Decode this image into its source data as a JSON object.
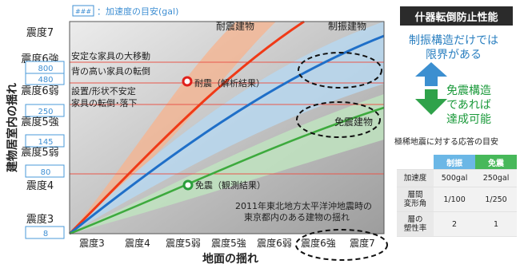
{
  "legend_label": "###：加速度の目安(gal)",
  "chart_data": {
    "type": "line",
    "ylabel": "建物居室内の揺れ",
    "xlabel": "地面の揺れ",
    "x_ticks": [
      "震度3",
      "震度4",
      "震度5弱",
      "震度5強",
      "震度6弱",
      "震度6強",
      "震度7"
    ],
    "y_ticks": [
      "震度3",
      "震度4",
      "震度5弱",
      "震度5強",
      "震度6弱",
      "震度6強",
      "震度7"
    ],
    "gal_values": [
      "8",
      "80",
      "145",
      "250",
      "480",
      "800"
    ],
    "series": [
      {
        "name": "耐震建物",
        "color": "#f03a17"
      },
      {
        "name": "制振建物",
        "color": "#1f6fc8"
      },
      {
        "name": "免震建物",
        "color": "#3daa3d"
      }
    ],
    "points": [
      {
        "label": "耐震（解析結果）"
      },
      {
        "label": "免震（観測結果）"
      }
    ],
    "damage_labels": [
      "安定な家具の大移動",
      "背の高い家具の転倒",
      "設置/形状不安定",
      "家具の転倒･落下"
    ],
    "callout": [
      "2011年東北地方太平洋沖地震時の",
      "東京都内のある建物の揺れ"
    ]
  },
  "right_panel": {
    "title": "什器転倒防止性能",
    "blue_text": [
      "制振構造だけでは",
      "限界がある"
    ],
    "green_text": [
      "免震構造",
      "であれば",
      "達成可能"
    ],
    "caption": "極稀地震に対する応答の目安",
    "table": {
      "headers": [
        "制振",
        "免震"
      ],
      "header_colors": [
        "#6bb7e6",
        "#47b85a"
      ],
      "rows": [
        {
          "label": "加速度",
          "v1": "500gal",
          "v2": "250gal"
        },
        {
          "label": "層間\n変形角",
          "v1": "1/100",
          "v2": "1/250"
        },
        {
          "label": "層の\n塑性率",
          "v1": "2",
          "v2": "1"
        }
      ]
    }
  }
}
